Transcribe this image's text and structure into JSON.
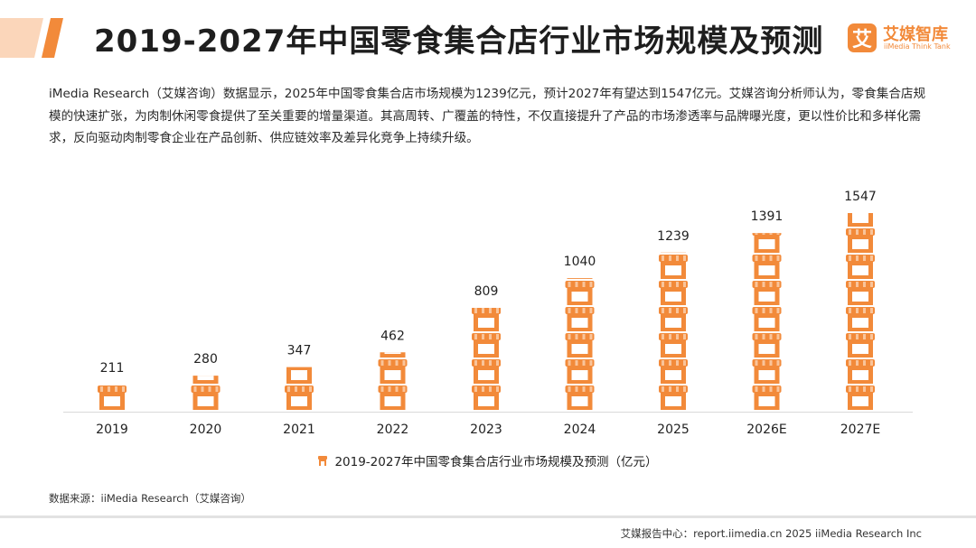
{
  "header": {
    "title": "2019-2027年中国零食集合店行业市场规模及预测",
    "logo_cn": "艾媒智库",
    "logo_en": "iiMedia Think Tank",
    "logo_mark": "艾"
  },
  "description": "iMedia Research（艾媒咨询）数据显示，2025年中国零食集合店市场规模为1239亿元，预计2027年有望达到1547亿元。艾媒咨询分析师认为，零食集合店规模的快速扩张，为肉制休闲零食提供了至关重要的增量渠道。其高周转、广覆盖的特性，不仅直接提升了产品的市场渗透率与品牌曝光度，更以性价比和多样化需求，反向驱动肉制零食企业在产品创新、供应链效率及差异化竞争上持续升级。",
  "chart_data": {
    "type": "bar",
    "categories": [
      "2019",
      "2020",
      "2021",
      "2022",
      "2023",
      "2024",
      "2025",
      "2026E",
      "2027E"
    ],
    "series": [
      {
        "name": "2019-2027年中国零食集合店行业市场规模及预测（亿元）",
        "values": [
          211,
          280,
          347,
          462,
          809,
          1040,
          1239,
          1391,
          1547
        ]
      }
    ],
    "ylim": [
      0,
      1547
    ],
    "bar_style": "pictograph-storefront-icons",
    "colors": {
      "bar": "#f28a3a",
      "bar_light": "#f9c49a",
      "stripe": "#ffffff",
      "axis": "#d9d9d9",
      "label": "#222222"
    },
    "grid": false,
    "legend_position": "bottom-center"
  },
  "source_text": "数据来源：iiMedia Research（艾媒咨询）",
  "footer_text": "艾媒报告中心：report.iimedia.cn   2025 iiMedia Research Inc",
  "colors": {
    "accent": "#f28a3a",
    "deco": "#f7b88a"
  }
}
